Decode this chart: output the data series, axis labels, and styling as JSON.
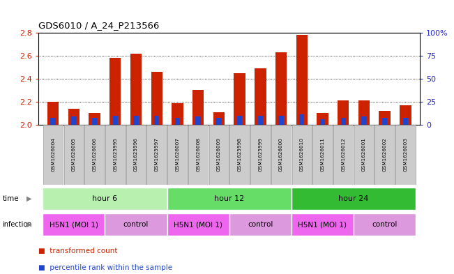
{
  "title": "GDS6010 / A_24_P213566",
  "samples": [
    "GSM1626004",
    "GSM1626005",
    "GSM1626006",
    "GSM1625995",
    "GSM1625996",
    "GSM1625997",
    "GSM1626007",
    "GSM1626008",
    "GSM1626009",
    "GSM1625998",
    "GSM1625999",
    "GSM1626000",
    "GSM1626010",
    "GSM1626011",
    "GSM1626012",
    "GSM1626001",
    "GSM1626002",
    "GSM1626003"
  ],
  "red_values": [
    2.2,
    2.14,
    2.1,
    2.58,
    2.62,
    2.46,
    2.19,
    2.3,
    2.11,
    2.45,
    2.49,
    2.63,
    2.78,
    2.1,
    2.21,
    2.21,
    2.12,
    2.17
  ],
  "blue_values": [
    2.06,
    2.07,
    2.06,
    2.08,
    2.08,
    2.08,
    2.06,
    2.07,
    2.06,
    2.08,
    2.08,
    2.08,
    2.09,
    2.05,
    2.06,
    2.07,
    2.06,
    2.06
  ],
  "ylim_left": [
    2.0,
    2.8
  ],
  "ylim_right": [
    0,
    100
  ],
  "yticks_left": [
    2.0,
    2.2,
    2.4,
    2.6,
    2.8
  ],
  "yticks_right": [
    0,
    25,
    50,
    75,
    100
  ],
  "ytick_labels_right": [
    "0",
    "25",
    "50",
    "75",
    "100%"
  ],
  "bar_base": 2.0,
  "time_groups": [
    {
      "label": "hour 6",
      "start": 0,
      "end": 6,
      "color": "#b8f0b0"
    },
    {
      "label": "hour 12",
      "start": 6,
      "end": 12,
      "color": "#66dd66"
    },
    {
      "label": "hour 24",
      "start": 12,
      "end": 18,
      "color": "#33bb33"
    }
  ],
  "infection_groups": [
    {
      "label": "H5N1 (MOI 1)",
      "start": 0,
      "end": 3,
      "color": "#ee66ee"
    },
    {
      "label": "control",
      "start": 3,
      "end": 6,
      "color": "#dd99dd"
    },
    {
      "label": "H5N1 (MOI 1)",
      "start": 6,
      "end": 9,
      "color": "#ee66ee"
    },
    {
      "label": "control",
      "start": 9,
      "end": 12,
      "color": "#dd99dd"
    },
    {
      "label": "H5N1 (MOI 1)",
      "start": 12,
      "end": 15,
      "color": "#ee66ee"
    },
    {
      "label": "control",
      "start": 15,
      "end": 18,
      "color": "#dd99dd"
    }
  ],
  "bar_width": 0.55,
  "red_color": "#cc2200",
  "blue_color": "#2244cc",
  "bg_color": "#ffffff",
  "tick_label_color_left": "#cc2200",
  "tick_label_color_right": "#2222cc",
  "sample_label_bg": "#cccccc",
  "sample_label_border": "#999999"
}
